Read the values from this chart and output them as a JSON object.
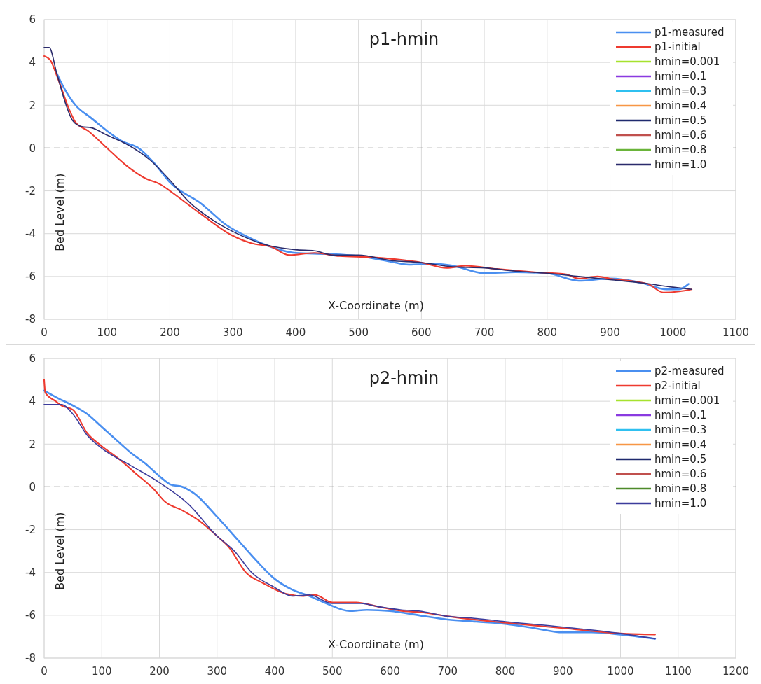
{
  "chart_data": [
    {
      "type": "line",
      "title": "p1-hmin",
      "xlabel": "X-Coordinate (m)",
      "ylabel": "Bed Level (m)",
      "xlim": [
        0,
        1100
      ],
      "xticks": [
        0,
        100,
        200,
        300,
        400,
        500,
        600,
        700,
        800,
        900,
        1000,
        1100
      ],
      "ylim": [
        -8,
        6
      ],
      "yticks": [
        -8,
        -6,
        -4,
        -2,
        0,
        2,
        4,
        6
      ],
      "grid": true,
      "legend": "top right",
      "line_style": "solid",
      "ref_lines": [
        {
          "axis": "y",
          "value": 0,
          "color": "#8c8c8c",
          "line_style": "dashed"
        }
      ],
      "series": [
        {
          "name": "p1-measured",
          "color": "#4a8ff0",
          "x": [
            20,
            30,
            50,
            75,
            100,
            125,
            150,
            175,
            200,
            250,
            290,
            320,
            350,
            400,
            450,
            500,
            550,
            580,
            620,
            650,
            700,
            750,
            800,
            850,
            900,
            950,
            990,
            1010,
            1025
          ],
          "values": [
            3.5,
            2.9,
            2.0,
            1.4,
            0.8,
            0.3,
            0,
            -0.7,
            -1.6,
            -2.6,
            -3.6,
            -4.1,
            -4.5,
            -4.9,
            -4.95,
            -5.05,
            -5.3,
            -5.45,
            -5.4,
            -5.5,
            -5.85,
            -5.8,
            -5.85,
            -6.2,
            -6.1,
            -6.3,
            -6.6,
            -6.6,
            -6.35
          ]
        },
        {
          "name": "p1-initial",
          "color": "#ee3a2f",
          "x": [
            0,
            10,
            20,
            40,
            50,
            70,
            100,
            130,
            160,
            185,
            200,
            250,
            300,
            330,
            360,
            390,
            430,
            470,
            520,
            560,
            600,
            640,
            670,
            720,
            780,
            830,
            850,
            880,
            900,
            960,
            985,
            1010,
            1030
          ],
          "values": [
            4.3,
            4.1,
            3.4,
            1.8,
            1.2,
            0.8,
            0,
            -0.8,
            -1.4,
            -1.7,
            -2.0,
            -3.1,
            -4.1,
            -4.45,
            -4.6,
            -5.0,
            -4.9,
            -5.05,
            -5.1,
            -5.2,
            -5.35,
            -5.6,
            -5.5,
            -5.65,
            -5.8,
            -5.9,
            -6.1,
            -6.0,
            -6.1,
            -6.35,
            -6.75,
            -6.7,
            -6.6
          ]
        },
        {
          "name": "hmin=0.001",
          "color": "#a6e22e"
        },
        {
          "name": "hmin=0.1",
          "color": "#8a3ae0"
        },
        {
          "name": "hmin=0.3",
          "color": "#2fc0f0"
        },
        {
          "name": "hmin=0.4",
          "color": "#f79646"
        },
        {
          "name": "hmin=0.5",
          "color": "#1f2a6e"
        },
        {
          "name": "hmin=0.6",
          "color": "#c0504d"
        },
        {
          "name": "hmin=0.8",
          "color": "#6ab43a"
        },
        {
          "name": "hmin=1.0",
          "color": "#2b2b6b",
          "x": [
            0,
            8,
            20,
            35,
            45,
            60,
            75,
            100,
            130,
            170,
            200,
            230,
            270,
            300,
            350,
            400,
            430,
            460,
            500,
            550,
            600,
            650,
            700,
            750,
            800,
            850,
            900,
            950,
            1000,
            1030
          ],
          "values": [
            4.7,
            4.7,
            3.5,
            2.0,
            1.3,
            1.0,
            0.95,
            0.6,
            0.2,
            -0.6,
            -1.5,
            -2.5,
            -3.4,
            -3.9,
            -4.5,
            -4.75,
            -4.8,
            -5.0,
            -5.0,
            -5.25,
            -5.35,
            -5.55,
            -5.6,
            -5.75,
            -5.85,
            -6.0,
            -6.15,
            -6.3,
            -6.5,
            -6.6
          ]
        }
      ]
    },
    {
      "type": "line",
      "title": "p2-hmin",
      "xlabel": "X-Coordinate (m)",
      "ylabel": "Bed Level (m)",
      "xlim": [
        0,
        1200
      ],
      "xticks": [
        0,
        100,
        200,
        300,
        400,
        500,
        600,
        700,
        800,
        900,
        1000,
        1100,
        1200
      ],
      "ylim": [
        -8,
        6
      ],
      "yticks": [
        -8,
        -6,
        -4,
        -2,
        0,
        2,
        4,
        6
      ],
      "grid": true,
      "legend": "top right",
      "line_style": "solid",
      "ref_lines": [
        {
          "axis": "y",
          "value": 0,
          "color": "#8c8c8c",
          "line_style": "dashed"
        }
      ],
      "series": [
        {
          "name": "p2-measured",
          "color": "#4a8ff0",
          "x": [
            0,
            20,
            50,
            75,
            100,
            125,
            150,
            175,
            200,
            220,
            240,
            260,
            300,
            340,
            370,
            400,
            430,
            460,
            490,
            530,
            560,
            600,
            650,
            700,
            750,
            800,
            850,
            900,
            950,
            1000,
            1060
          ],
          "values": [
            4.5,
            4.2,
            3.8,
            3.4,
            2.8,
            2.2,
            1.6,
            1.1,
            0.5,
            0.1,
            0,
            -0.3,
            -1.4,
            -2.6,
            -3.5,
            -4.3,
            -4.8,
            -5.1,
            -5.45,
            -5.8,
            -5.75,
            -5.8,
            -6.0,
            -6.2,
            -6.3,
            -6.4,
            -6.6,
            -6.8,
            -6.8,
            -6.9,
            -7.1
          ]
        },
        {
          "name": "p2-initial",
          "color": "#ee3a2f",
          "x": [
            0,
            2,
            20,
            30,
            50,
            75,
            100,
            130,
            160,
            190,
            210,
            240,
            270,
            300,
            320,
            350,
            380,
            420,
            450,
            470,
            500,
            540,
            580,
            620,
            650,
            700,
            800,
            900,
            1000,
            1060
          ],
          "values": [
            5.0,
            4.4,
            4.0,
            3.8,
            3.6,
            2.5,
            1.9,
            1.3,
            0.6,
            -0.1,
            -0.7,
            -1.1,
            -1.6,
            -2.3,
            -2.8,
            -4.0,
            -4.5,
            -5.0,
            -5.1,
            -5.05,
            -5.4,
            -5.4,
            -5.6,
            -5.8,
            -5.85,
            -6.05,
            -6.35,
            -6.6,
            -6.85,
            -6.9
          ]
        },
        {
          "name": "hmin=0.001",
          "color": "#a6e22e"
        },
        {
          "name": "hmin=0.1",
          "color": "#8a3ae0"
        },
        {
          "name": "hmin=0.3",
          "color": "#2fc0f0"
        },
        {
          "name": "hmin=0.4",
          "color": "#f79646"
        },
        {
          "name": "hmin=0.5",
          "color": "#1f2a6e"
        },
        {
          "name": "hmin=0.6",
          "color": "#c0504d"
        },
        {
          "name": "hmin=0.8",
          "color": "#4e8a2a"
        },
        {
          "name": "hmin=1.0",
          "color": "#3c3c9c",
          "x": [
            0,
            30,
            50,
            75,
            100,
            150,
            200,
            250,
            300,
            330,
            360,
            400,
            430,
            460,
            500,
            550,
            580,
            620,
            650,
            700,
            750,
            800,
            900,
            1000,
            1060
          ],
          "values": [
            3.85,
            3.85,
            3.4,
            2.4,
            1.8,
            1.0,
            0.2,
            -0.8,
            -2.3,
            -3.0,
            -4.0,
            -4.7,
            -5.1,
            -5.05,
            -5.45,
            -5.45,
            -5.6,
            -5.75,
            -5.8,
            -6.05,
            -6.15,
            -6.3,
            -6.55,
            -6.85,
            -7.1
          ]
        }
      ]
    }
  ]
}
